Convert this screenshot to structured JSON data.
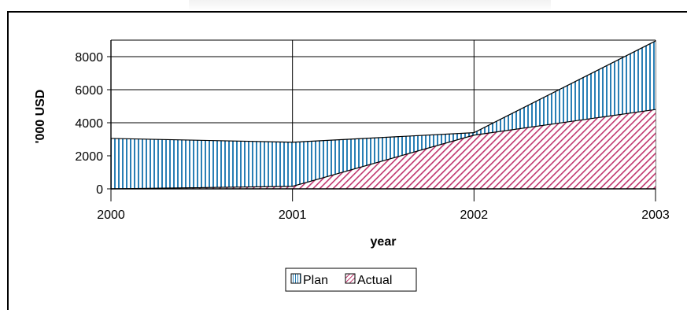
{
  "chart_data": {
    "type": "area",
    "title": "",
    "xlabel": "year",
    "ylabel": "'000 USD",
    "x": [
      2000,
      2001,
      2002,
      2003
    ],
    "xticks": [
      "2000",
      "2001",
      "2002",
      "2003"
    ],
    "yticks": [
      "0",
      "2000",
      "4000",
      "6000",
      "8000"
    ],
    "ylim": [
      0,
      9000
    ],
    "grid": true,
    "legend_position": "bottom",
    "series": [
      {
        "name": "Plan",
        "values": [
          3050,
          2820,
          3400,
          8950
        ],
        "pattern": "vertical-lines",
        "color": "#2a7fb5"
      },
      {
        "name": "Actual",
        "values": [
          0,
          150,
          3250,
          4800
        ],
        "pattern": "diagonal-hatch",
        "color": "#c0366e"
      }
    ]
  }
}
